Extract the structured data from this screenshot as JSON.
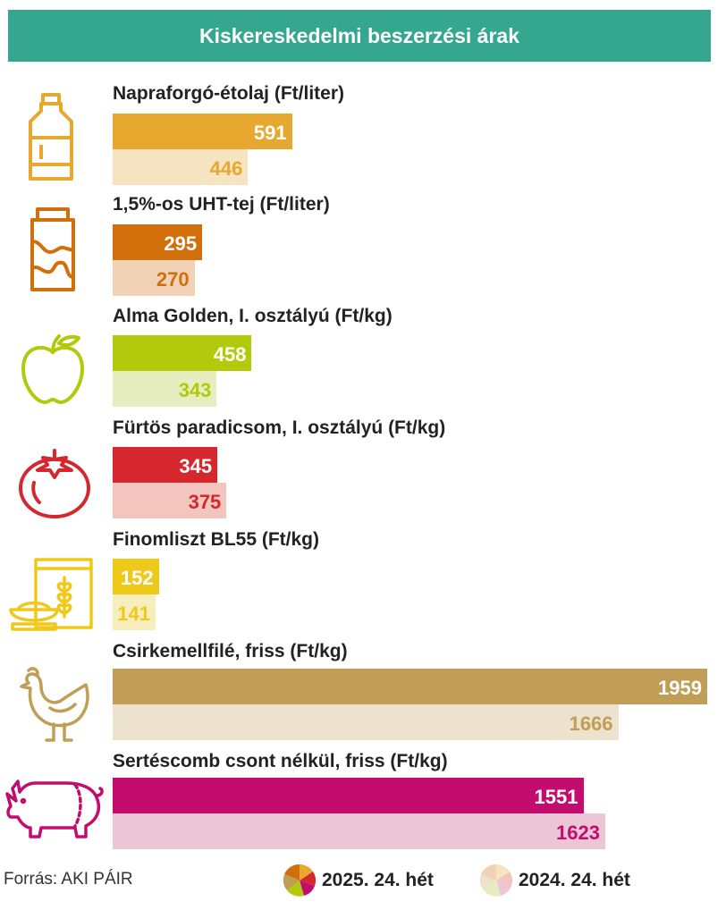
{
  "header": {
    "title": "Kiskereskedelmi beszerzési árak"
  },
  "colors": {
    "header_bg": "#35a68f",
    "oil": [
      "#e7a830",
      "#f6e3c0"
    ],
    "milk": [
      "#d36f0b",
      "#f2d2b6"
    ],
    "apple": [
      "#b2c90c",
      "#e6edbf"
    ],
    "tomato": [
      "#d6262e",
      "#f2c5be"
    ],
    "flour": [
      "#efc91a",
      "#f8edbd"
    ],
    "chicken": [
      "#c19e55",
      "#ece2cd"
    ],
    "pork": [
      "#c20c6e",
      "#ecc6d6"
    ]
  },
  "chart_data": {
    "type": "bar",
    "title": "Kiskereskedelmi beszerzési árak",
    "orientation": "horizontal",
    "categories": [
      "Napraforgó-étolaj (Ft/liter)",
      "1,5%-os UHT-tej (Ft/liter)",
      "Alma Golden, I. osztályú (Ft/kg)",
      "Fürtös paradicsom, I. osztályú (Ft/kg)",
      "Finomliszt BL55 (Ft/kg)",
      "Csirkemellfilé, friss (Ft/kg)",
      "Sertéscomb csont nélkül, friss (Ft/kg)"
    ],
    "series": [
      {
        "name": "2025. 24. hét",
        "values": [
          591,
          295,
          458,
          345,
          152,
          1959,
          1551
        ]
      },
      {
        "name": "2024. 24. hét",
        "values": [
          446,
          270,
          343,
          375,
          141,
          1666,
          1623
        ]
      }
    ],
    "xlim": [
      0,
      1959
    ]
  },
  "footer": {
    "source": "Forrás: AKI PÁIR",
    "legend": [
      "2025. 24. hét",
      "2024. 24. hét"
    ]
  },
  "icons": [
    "oil-bottle-icon",
    "milk-carton-icon",
    "apple-icon",
    "tomato-icon",
    "flour-bag-icon",
    "chicken-icon",
    "pig-icon"
  ]
}
